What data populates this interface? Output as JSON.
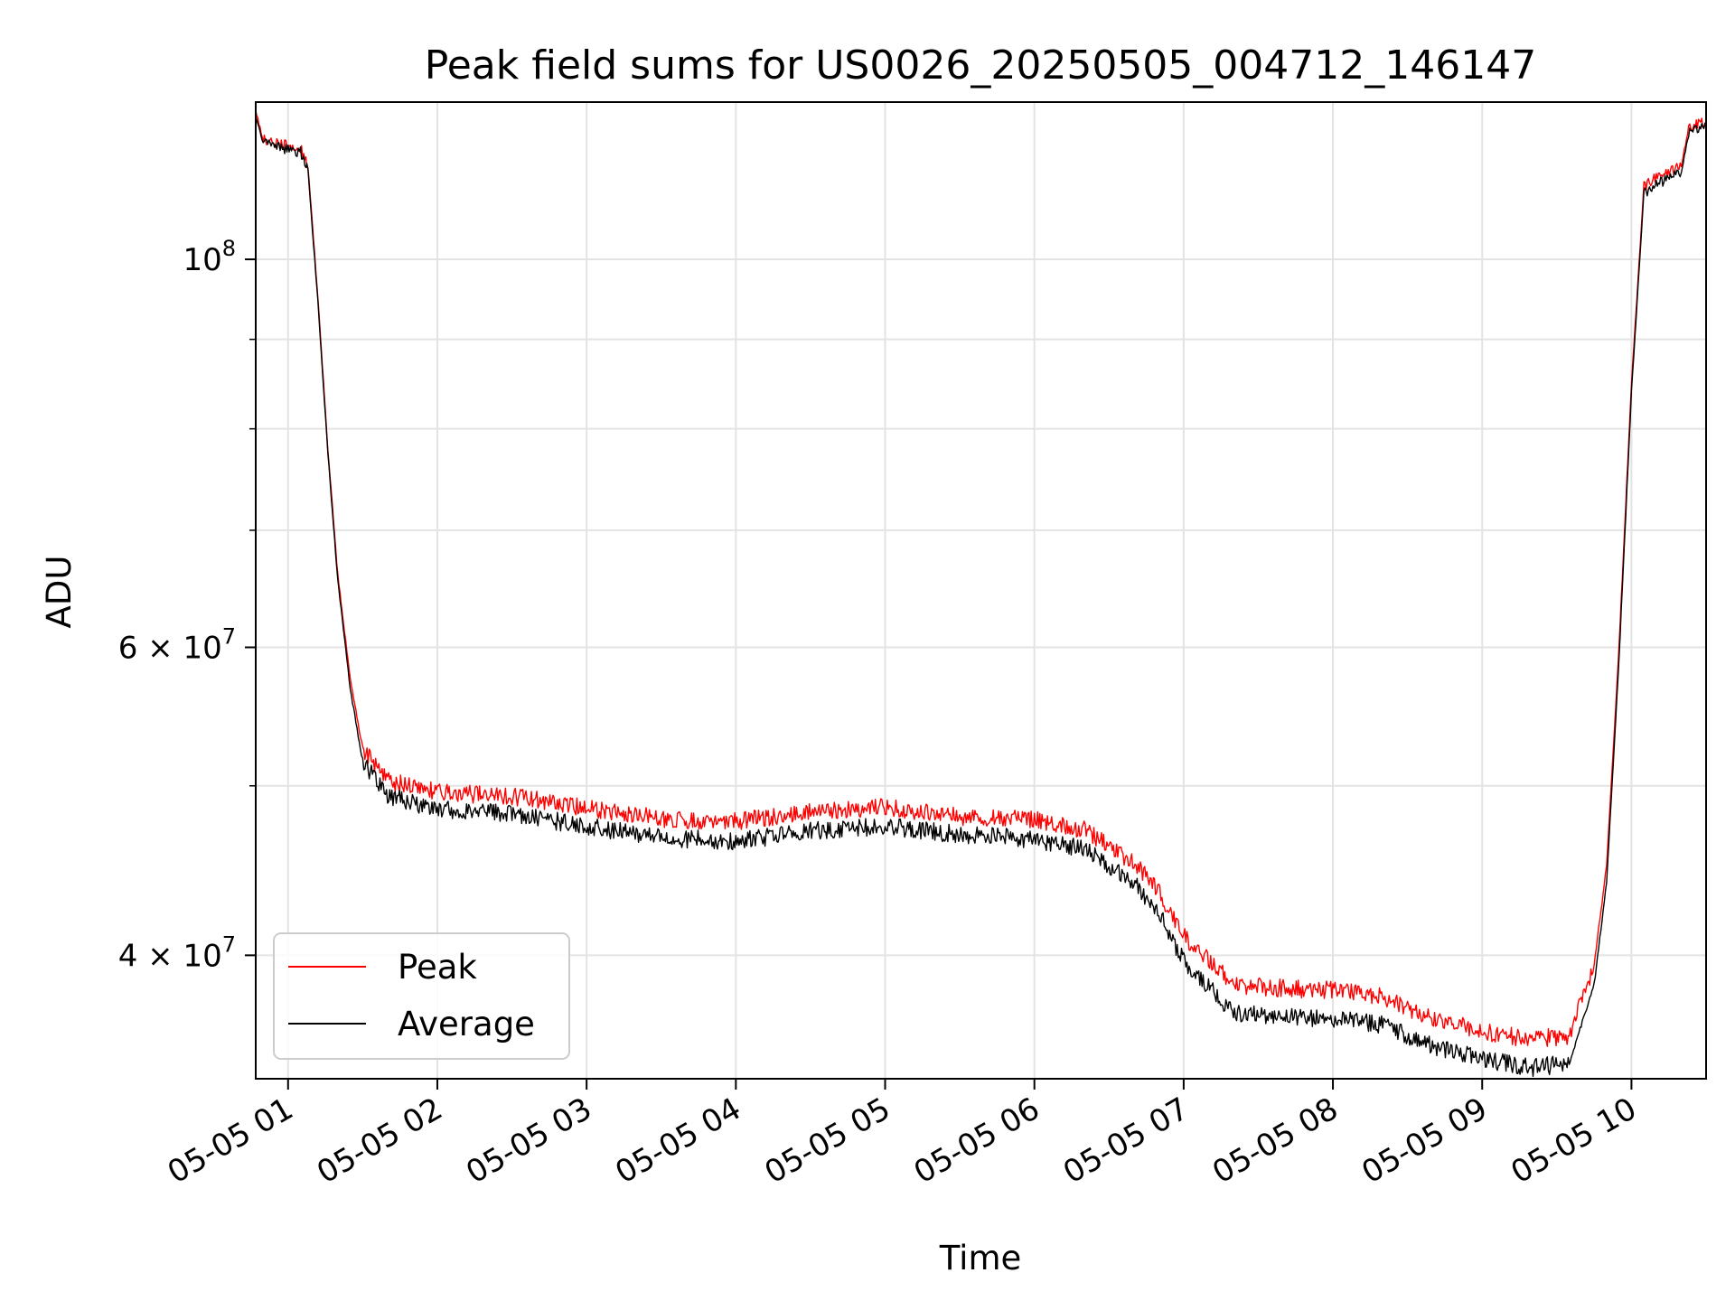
{
  "chart_data": {
    "type": "line",
    "title": "Peak field sums for US0026_20250505_004712_146147",
    "xlabel": "Time",
    "ylabel": "ADU",
    "y_scale": "log",
    "grid": true,
    "legend_position": "lower-left",
    "xlim": [
      "2025-05-05 00:47",
      "2025-05-05 10:30"
    ],
    "ylim": [
      34000000,
      123000000
    ],
    "x_ticks": [
      {
        "value": "2025-05-05 01:00",
        "label": "05-05 01"
      },
      {
        "value": "2025-05-05 02:00",
        "label": "05-05 02"
      },
      {
        "value": "2025-05-05 03:00",
        "label": "05-05 03"
      },
      {
        "value": "2025-05-05 04:00",
        "label": "05-05 04"
      },
      {
        "value": "2025-05-05 05:00",
        "label": "05-05 05"
      },
      {
        "value": "2025-05-05 06:00",
        "label": "05-05 06"
      },
      {
        "value": "2025-05-05 07:00",
        "label": "05-05 07"
      },
      {
        "value": "2025-05-05 08:00",
        "label": "05-05 08"
      },
      {
        "value": "2025-05-05 09:00",
        "label": "05-05 09"
      },
      {
        "value": "2025-05-05 10:00",
        "label": "05-05 10"
      }
    ],
    "y_major_ticks": [
      {
        "value": 40000000,
        "base": "4",
        "exp": "7"
      },
      {
        "value": 60000000,
        "base": "6",
        "exp": "7"
      },
      {
        "value": 100000000,
        "base": "",
        "exp": "8"
      }
    ],
    "y_minor_ticks": [
      50000000,
      70000000,
      80000000,
      90000000
    ],
    "series": [
      {
        "name": "Peak",
        "color": "#ff0000",
        "points": [
          [
            "2025-05-05 00:47",
            121500000
          ],
          [
            "2025-05-05 00:50",
            117000000
          ],
          [
            "2025-05-05 00:55",
            116500000
          ],
          [
            "2025-05-05 01:00",
            116200000
          ],
          [
            "2025-05-05 01:05",
            115800000
          ],
          [
            "2025-05-05 01:08",
            113000000
          ],
          [
            "2025-05-05 01:12",
            95000000
          ],
          [
            "2025-05-05 01:16",
            78000000
          ],
          [
            "2025-05-05 01:20",
            66000000
          ],
          [
            "2025-05-05 01:25",
            57500000
          ],
          [
            "2025-05-05 01:30",
            52500000
          ],
          [
            "2025-05-05 01:40",
            50300000
          ],
          [
            "2025-05-05 02:00",
            49600000
          ],
          [
            "2025-05-05 02:30",
            49300000
          ],
          [
            "2025-05-05 03:00",
            48600000
          ],
          [
            "2025-05-05 03:30",
            47900000
          ],
          [
            "2025-05-05 04:00",
            47700000
          ],
          [
            "2025-05-05 04:30",
            48300000
          ],
          [
            "2025-05-05 05:00",
            48600000
          ],
          [
            "2025-05-05 05:30",
            48000000
          ],
          [
            "2025-05-05 06:00",
            47800000
          ],
          [
            "2025-05-05 06:20",
            47200000
          ],
          [
            "2025-05-05 06:40",
            45200000
          ],
          [
            "2025-05-05 06:50",
            43500000
          ],
          [
            "2025-05-05 07:00",
            41000000
          ],
          [
            "2025-05-05 07:20",
            38500000
          ],
          [
            "2025-05-05 07:40",
            38300000
          ],
          [
            "2025-05-05 08:00",
            38200000
          ],
          [
            "2025-05-05 08:20",
            37900000
          ],
          [
            "2025-05-05 08:40",
            36800000
          ],
          [
            "2025-05-05 09:00",
            36200000
          ],
          [
            "2025-05-05 09:20",
            35800000
          ],
          [
            "2025-05-05 09:35",
            36000000
          ],
          [
            "2025-05-05 09:45",
            39500000
          ],
          [
            "2025-05-05 09:50",
            45000000
          ],
          [
            "2025-05-05 09:55",
            60000000
          ],
          [
            "2025-05-05 10:00",
            85000000
          ],
          [
            "2025-05-05 10:05",
            110000000
          ],
          [
            "2025-05-05 10:10",
            111500000
          ],
          [
            "2025-05-05 10:20",
            113000000
          ],
          [
            "2025-05-05 10:23",
            119000000
          ],
          [
            "2025-05-05 10:30",
            120000000
          ]
        ]
      },
      {
        "name": "Average",
        "color": "#000000",
        "points": [
          [
            "2025-05-05 00:47",
            121000000
          ],
          [
            "2025-05-05 00:50",
            116500000
          ],
          [
            "2025-05-05 00:55",
            116000000
          ],
          [
            "2025-05-05 01:00",
            115600000
          ],
          [
            "2025-05-05 01:05",
            115200000
          ],
          [
            "2025-05-05 01:08",
            112500000
          ],
          [
            "2025-05-05 01:12",
            94500000
          ],
          [
            "2025-05-05 01:16",
            77500000
          ],
          [
            "2025-05-05 01:20",
            65500000
          ],
          [
            "2025-05-05 01:25",
            56800000
          ],
          [
            "2025-05-05 01:30",
            51600000
          ],
          [
            "2025-05-05 01:40",
            49300000
          ],
          [
            "2025-05-05 02:00",
            48500000
          ],
          [
            "2025-05-05 02:30",
            48200000
          ],
          [
            "2025-05-05 03:00",
            47400000
          ],
          [
            "2025-05-05 03:30",
            46700000
          ],
          [
            "2025-05-05 04:00",
            46500000
          ],
          [
            "2025-05-05 04:30",
            47100000
          ],
          [
            "2025-05-05 05:00",
            47400000
          ],
          [
            "2025-05-05 05:30",
            46900000
          ],
          [
            "2025-05-05 06:00",
            46600000
          ],
          [
            "2025-05-05 06:20",
            46000000
          ],
          [
            "2025-05-05 06:40",
            44000000
          ],
          [
            "2025-05-05 06:50",
            42300000
          ],
          [
            "2025-05-05 07:00",
            39700000
          ],
          [
            "2025-05-05 07:20",
            37100000
          ],
          [
            "2025-05-05 07:40",
            36900000
          ],
          [
            "2025-05-05 08:00",
            36800000
          ],
          [
            "2025-05-05 08:20",
            36500000
          ],
          [
            "2025-05-05 08:40",
            35500000
          ],
          [
            "2025-05-05 09:00",
            34900000
          ],
          [
            "2025-05-05 09:20",
            34500000
          ],
          [
            "2025-05-05 09:35",
            34700000
          ],
          [
            "2025-05-05 09:45",
            38500000
          ],
          [
            "2025-05-05 09:50",
            44000000
          ],
          [
            "2025-05-05 09:55",
            59000000
          ],
          [
            "2025-05-05 10:00",
            84000000
          ],
          [
            "2025-05-05 10:05",
            109000000
          ],
          [
            "2025-05-05 10:10",
            110500000
          ],
          [
            "2025-05-05 10:20",
            112000000
          ],
          [
            "2025-05-05 10:23",
            118000000
          ],
          [
            "2025-05-05 10:30",
            119000000
          ]
        ]
      }
    ]
  }
}
